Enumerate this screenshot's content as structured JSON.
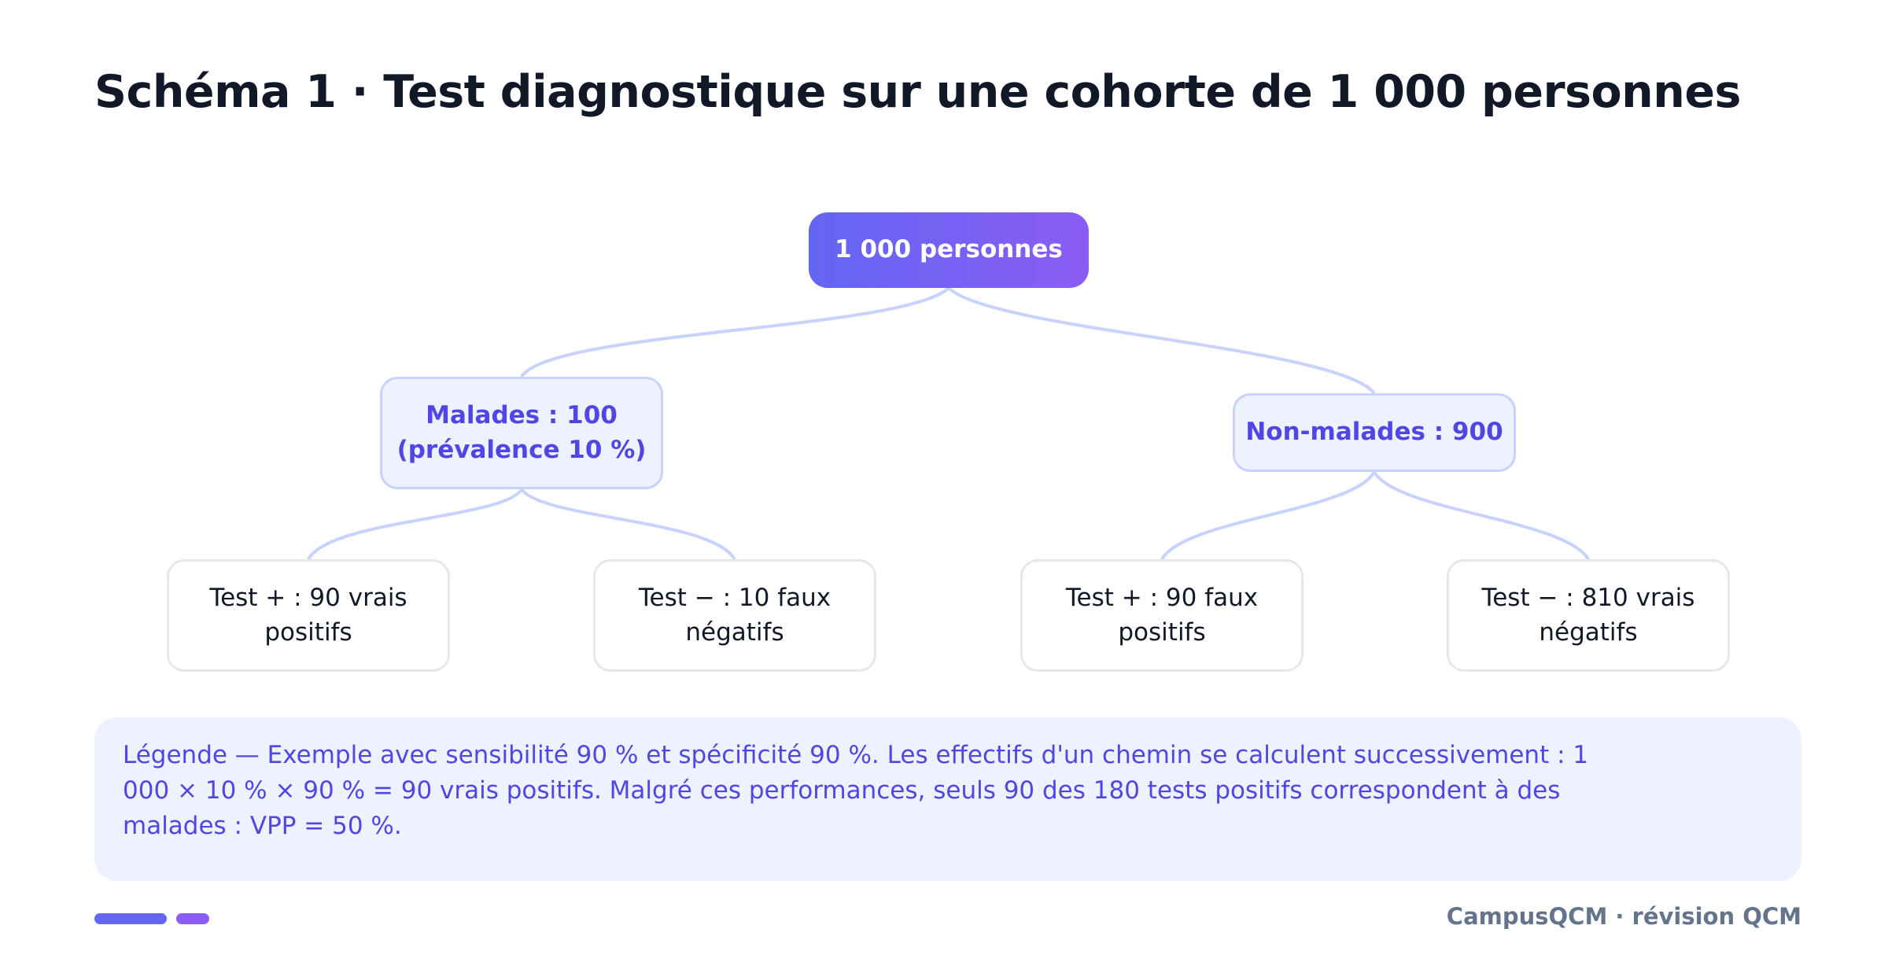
{
  "title": "Schéma 1 · Test diagnostique sur une cohorte de 1 000 personnes",
  "tree": {
    "root": "1 000 personnes",
    "left": {
      "label": "Malades : 100\n(prévalence 10 %)",
      "children": [
        "Test + : 90 vrais positifs",
        "Test − : 10 faux négatifs"
      ]
    },
    "right": {
      "label": "Non-malades : 900",
      "children": [
        "Test + : 90 faux positifs",
        "Test − : 810 vrais négatifs"
      ]
    }
  },
  "legend": "Légende — Exemple avec sensibilité 90 % et spécificité 90 %. Les effectifs d'un chemin se calculent successivement : 1 000 × 10 % × 90 % = 90 vrais positifs. Malgré ces performances, seuls 90 des 180 tests positifs correspondent à des malades : VPP = 50 %.",
  "footer": {
    "brand": "CampusQCM · révision QCM"
  },
  "colors": {
    "accent": "#6366f1",
    "accent_2": "#8b5cf6",
    "node_fill": "#eef2ff",
    "node_text": "#4f46e5",
    "connector": "#c7d2fe"
  }
}
